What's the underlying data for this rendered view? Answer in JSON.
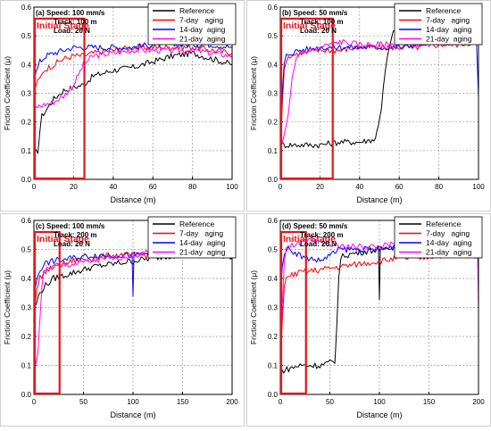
{
  "chart_data": [
    {
      "type": "line",
      "panel_label": "(a)",
      "conditions": [
        "(a) Speed: 100 mm/s",
        "Track: 100 m",
        "Load: 20 N"
      ],
      "xlabel": "Distance (m)",
      "ylabel": "Friction Coefficient (μ)",
      "xlim": [
        0,
        100
      ],
      "ylim": [
        0,
        0.6
      ],
      "xticks": [
        "0",
        "20",
        "40",
        "60",
        "80",
        "100"
      ],
      "yticks": [
        "0.0",
        "0.1",
        "0.2",
        "0.3",
        "0.4",
        "0.5",
        "0.6"
      ],
      "grid": true,
      "legend": "top-right",
      "annotation": {
        "text": "Initial Stage",
        "x_range": [
          0,
          25
        ],
        "y_range": [
          0,
          0.56
        ]
      },
      "series": [
        {
          "name": "Reference",
          "color": "#000000",
          "x": [
            0,
            2,
            3,
            4,
            5,
            7,
            10,
            15,
            20,
            25,
            30,
            40,
            50,
            60,
            70,
            80,
            90,
            100
          ],
          "y": [
            0.09,
            0.1,
            0.17,
            0.22,
            0.23,
            0.25,
            0.28,
            0.31,
            0.32,
            0.33,
            0.36,
            0.38,
            0.39,
            0.41,
            0.43,
            0.44,
            0.42,
            0.4
          ]
        },
        {
          "name": "7-day   aging",
          "color": "#ff0000",
          "x": [
            0,
            1,
            3,
            5,
            10,
            15,
            20,
            25,
            30,
            40,
            50,
            60,
            70,
            80,
            90,
            100
          ],
          "y": [
            0.3,
            0.33,
            0.35,
            0.38,
            0.4,
            0.42,
            0.43,
            0.43,
            0.44,
            0.45,
            0.46,
            0.46,
            0.46,
            0.46,
            0.45,
            0.44
          ]
        },
        {
          "name": "14-day  aging",
          "color": "#0000ff",
          "x": [
            0,
            1,
            3,
            6,
            10,
            15,
            20,
            30,
            40,
            50,
            60,
            70,
            80,
            90,
            100
          ],
          "y": [
            0.34,
            0.37,
            0.41,
            0.43,
            0.44,
            0.45,
            0.46,
            0.46,
            0.46,
            0.46,
            0.47,
            0.47,
            0.47,
            0.47,
            0.46
          ]
        },
        {
          "name": "21-day  aging",
          "color": "#ff00ff",
          "x": [
            0,
            5,
            10,
            15,
            20,
            25,
            30,
            40,
            50,
            60,
            70,
            80,
            90,
            100
          ],
          "y": [
            0.25,
            0.26,
            0.27,
            0.29,
            0.33,
            0.4,
            0.43,
            0.44,
            0.45,
            0.45,
            0.45,
            0.45,
            0.44,
            0.43
          ]
        }
      ]
    },
    {
      "type": "line",
      "panel_label": "(b)",
      "conditions": [
        "(b) Speed: 50 mm/s",
        "Track: 100 m",
        "Load: 20 N"
      ],
      "xlabel": "Distance (m)",
      "ylabel": "Friction Coefficient (μ)",
      "xlim": [
        0,
        100
      ],
      "ylim": [
        0,
        0.6
      ],
      "xticks": [
        "0",
        "20",
        "40",
        "60",
        "80",
        "100"
      ],
      "yticks": [
        "0.0",
        "0.1",
        "0.2",
        "0.3",
        "0.4",
        "0.5",
        "0.6"
      ],
      "grid": true,
      "legend": "top-right",
      "annotation": {
        "text": "Initial Stage",
        "x_range": [
          0,
          26
        ],
        "y_range": [
          0,
          0.56
        ]
      },
      "series": [
        {
          "name": "Reference",
          "color": "#000000",
          "x": [
            0,
            10,
            20,
            30,
            40,
            48,
            51,
            53,
            55,
            57,
            60,
            70,
            80,
            90,
            100
          ],
          "y": [
            0.12,
            0.12,
            0.12,
            0.13,
            0.13,
            0.14,
            0.25,
            0.38,
            0.46,
            0.51,
            0.52,
            0.53,
            0.54,
            0.54,
            0.54
          ]
        },
        {
          "name": "7-day   aging",
          "color": "#ff0000",
          "x": [
            0,
            1,
            2,
            3,
            5,
            10,
            20,
            30,
            40,
            50,
            60,
            70,
            80,
            90,
            100
          ],
          "y": [
            0.08,
            0.25,
            0.38,
            0.42,
            0.43,
            0.44,
            0.45,
            0.45,
            0.46,
            0.46,
            0.46,
            0.46,
            0.47,
            0.47,
            0.48
          ]
        },
        {
          "name": "14-day  aging",
          "color": "#0000ff",
          "x": [
            0,
            1,
            2,
            3,
            5,
            10,
            20,
            30,
            40,
            50,
            60,
            70,
            80,
            90,
            99,
            100
          ],
          "y": [
            0.12,
            0.3,
            0.4,
            0.43,
            0.44,
            0.45,
            0.46,
            0.46,
            0.46,
            0.46,
            0.46,
            0.47,
            0.48,
            0.48,
            0.48,
            0.29
          ]
        },
        {
          "name": "21-day  aging",
          "color": "#ff00ff",
          "x": [
            0,
            2,
            4,
            6,
            8,
            10,
            20,
            30,
            40,
            50,
            60,
            70,
            80,
            90,
            100
          ],
          "y": [
            0.1,
            0.15,
            0.22,
            0.35,
            0.42,
            0.44,
            0.46,
            0.48,
            0.47,
            0.47,
            0.47,
            0.47,
            0.47,
            0.48,
            0.48
          ]
        }
      ]
    },
    {
      "type": "line",
      "panel_label": "(c)",
      "conditions": [
        "(c) Speed: 100 mm/s",
        "Track: 200 m",
        "Load: 20 N"
      ],
      "xlabel": "Distance (m)",
      "ylabel": "Friction Coefficient (μ)",
      "xlim": [
        0,
        200
      ],
      "ylim": [
        0,
        0.6
      ],
      "xticks": [
        "0",
        "50",
        "100",
        "150",
        "200"
      ],
      "yticks": [
        "0.0",
        "0.1",
        "0.2",
        "0.3",
        "0.4",
        "0.5",
        "0.6"
      ],
      "grid": true,
      "legend": "top-right",
      "annotation": {
        "text": "Initial Stage",
        "x_range": [
          0,
          25
        ],
        "y_range": [
          0,
          0.56
        ]
      },
      "series": [
        {
          "name": "Reference",
          "color": "#000000",
          "x": [
            0,
            3,
            6,
            10,
            20,
            40,
            60,
            80,
            100,
            120,
            140,
            160,
            180,
            200
          ],
          "y": [
            0.28,
            0.32,
            0.35,
            0.37,
            0.4,
            0.42,
            0.44,
            0.45,
            0.46,
            0.47,
            0.48,
            0.48,
            0.49,
            0.47
          ]
        },
        {
          "name": "7-day   aging",
          "color": "#ff0000",
          "x": [
            0,
            3,
            6,
            10,
            20,
            40,
            60,
            80,
            100,
            120,
            140,
            160,
            180,
            200
          ],
          "y": [
            0.3,
            0.36,
            0.4,
            0.42,
            0.44,
            0.46,
            0.47,
            0.48,
            0.48,
            0.48,
            0.49,
            0.49,
            0.5,
            0.5
          ]
        },
        {
          "name": "14-day  aging",
          "color": "#0000ff",
          "x": [
            0,
            3,
            6,
            10,
            20,
            40,
            60,
            80,
            99,
            100,
            101,
            120,
            140,
            160,
            180,
            200
          ],
          "y": [
            0.34,
            0.4,
            0.43,
            0.45,
            0.46,
            0.47,
            0.48,
            0.48,
            0.48,
            0.33,
            0.48,
            0.49,
            0.49,
            0.5,
            0.5,
            0.5
          ]
        },
        {
          "name": "21-day  aging",
          "color": "#ff00ff",
          "x": [
            0,
            2,
            4,
            6,
            8,
            10,
            15,
            20,
            40,
            60,
            80,
            100,
            120,
            140,
            160,
            180,
            200
          ],
          "y": [
            0.08,
            0.1,
            0.15,
            0.26,
            0.36,
            0.42,
            0.44,
            0.44,
            0.45,
            0.46,
            0.47,
            0.48,
            0.49,
            0.5,
            0.5,
            0.5,
            0.5
          ]
        }
      ]
    },
    {
      "type": "line",
      "panel_label": "(d)",
      "conditions": [
        "(d) Speed: 50 mm/s",
        "Track: 200 m",
        "Load: 20 N"
      ],
      "xlabel": "Distance (m)",
      "ylabel": "Friction Coefficient (μ)",
      "xlim": [
        0,
        200
      ],
      "ylim": [
        0,
        0.6
      ],
      "xticks": [
        "0",
        "50",
        "100",
        "150",
        "200"
      ],
      "yticks": [
        "0.0",
        "0.1",
        "0.2",
        "0.3",
        "0.4",
        "0.5",
        "0.6"
      ],
      "grid": true,
      "legend": "top-right",
      "annotation": {
        "text": "Initial Stage",
        "x_range": [
          0,
          25
        ],
        "y_range": [
          0,
          0.56
        ]
      },
      "series": [
        {
          "name": "Reference",
          "color": "#000000",
          "x": [
            0,
            10,
            20,
            30,
            40,
            50,
            55,
            57,
            59,
            61,
            65,
            80,
            99,
            100,
            101,
            120,
            150,
            180,
            200
          ],
          "y": [
            0.08,
            0.09,
            0.1,
            0.1,
            0.1,
            0.11,
            0.11,
            0.25,
            0.4,
            0.47,
            0.48,
            0.49,
            0.5,
            0.32,
            0.5,
            0.52,
            0.54,
            0.55,
            0.55
          ]
        },
        {
          "name": "7-day   aging",
          "color": "#ff0000",
          "x": [
            0,
            2,
            4,
            6,
            8,
            10,
            20,
            40,
            60,
            80,
            100,
            120,
            140,
            160,
            180,
            200
          ],
          "y": [
            0.1,
            0.25,
            0.38,
            0.4,
            0.4,
            0.41,
            0.42,
            0.43,
            0.44,
            0.45,
            0.46,
            0.47,
            0.47,
            0.48,
            0.48,
            0.48
          ]
        },
        {
          "name": "14-day  aging",
          "color": "#0000ff",
          "x": [
            0,
            2,
            4,
            6,
            10,
            15,
            20,
            25,
            30,
            40,
            50,
            60,
            80,
            100,
            120,
            140,
            160,
            180,
            200
          ],
          "y": [
            0.34,
            0.45,
            0.49,
            0.5,
            0.5,
            0.49,
            0.48,
            0.47,
            0.47,
            0.46,
            0.48,
            0.5,
            0.5,
            0.5,
            0.51,
            0.51,
            0.52,
            0.52,
            0.51
          ]
        },
        {
          "name": "21-day  aging",
          "color": "#ff00ff",
          "x": [
            0,
            2,
            4,
            6,
            10,
            15,
            20,
            30,
            40,
            60,
            80,
            100,
            120,
            140,
            160,
            180,
            199,
            200
          ],
          "y": [
            0.12,
            0.3,
            0.45,
            0.5,
            0.51,
            0.52,
            0.52,
            0.53,
            0.52,
            0.51,
            0.51,
            0.51,
            0.52,
            0.52,
            0.51,
            0.51,
            0.5,
            0.29
          ]
        }
      ]
    }
  ]
}
